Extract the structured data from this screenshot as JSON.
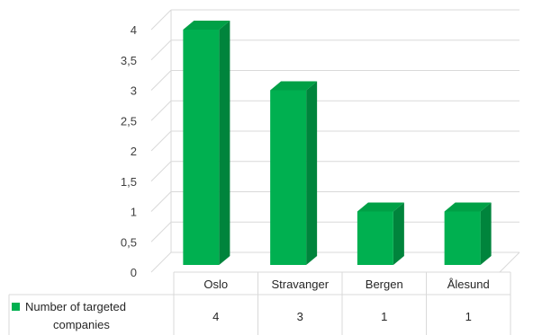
{
  "chart_data": {
    "type": "bar",
    "categories": [
      "Oslo",
      "Stravanger",
      "Bergen",
      "Ålesund"
    ],
    "series": [
      {
        "name": "Number of targeted companies",
        "values": [
          4,
          3,
          1,
          1
        ]
      }
    ],
    "yticks": [
      "0",
      "0,5",
      "1",
      "1,5",
      "2",
      "2,5",
      "3",
      "3,5",
      "4"
    ],
    "ylim": [
      0,
      4
    ],
    "grid": true,
    "style": "3d-column",
    "data_table": true,
    "colors": {
      "bar_front": "#00b050",
      "bar_side": "#00843c",
      "bar_top": "#00a046",
      "grid": "#d9d9d9"
    }
  },
  "legend": {
    "line1": "Number of targeted",
    "line2": "companies"
  }
}
